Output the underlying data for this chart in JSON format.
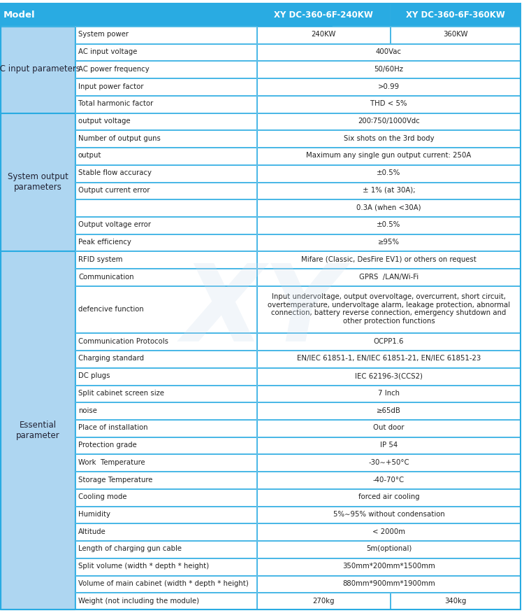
{
  "header": {
    "col0": "Model",
    "col1": "",
    "col2": "XY DC-360-6F-240KW",
    "col3": "XY DC-360-6F-360KW"
  },
  "header_bg": "#29ABE2",
  "header_text_color": "#FFFFFF",
  "section_bg": "#AED6F1",
  "row_bg_white": "#FFFFFF",
  "row_bg_light": "#EAF4FB",
  "border_color": "#29ABE2",
  "text_color": "#222222",
  "section_text_color": "#333333",
  "rows": [
    {
      "section": "AC input parameters",
      "param": "System power",
      "col2": "240KW",
      "col3": "360KW",
      "merged": false,
      "section_span": 5
    },
    {
      "section": "",
      "param": "AC input voltage",
      "col2": "400Vac",
      "col3": "",
      "merged": true
    },
    {
      "section": "",
      "param": "AC power frequency",
      "col2": "50/60Hz",
      "col3": "",
      "merged": true
    },
    {
      "section": "",
      "param": "Input power factor",
      "col2": ">0.99",
      "col3": "",
      "merged": true
    },
    {
      "section": "",
      "param": "Total harmonic factor",
      "col2": "THD < 5%",
      "col3": "",
      "merged": true
    },
    {
      "section": "System output\nparameters",
      "param": "output voltage",
      "col2": "200∶750/1000Vdc",
      "col3": "",
      "merged": true,
      "section_span": 8
    },
    {
      "section": "",
      "param": "Number of output guns",
      "col2": "Six shots on the 3rd body",
      "col3": "",
      "merged": true
    },
    {
      "section": "",
      "param": "output",
      "col2": "Maximum any single gun output current: 250A",
      "col3": "",
      "merged": true
    },
    {
      "section": "",
      "param": "Stable flow accuracy",
      "col2": "±0.5%",
      "col3": "",
      "merged": true
    },
    {
      "section": "",
      "param": "Output current error",
      "col2": "± 1% (at 30A);",
      "col3": "",
      "merged": true
    },
    {
      "section": "",
      "param": "",
      "col2": "0.3A (when <30A)",
      "col3": "",
      "merged": true
    },
    {
      "section": "",
      "param": "Output voltage error",
      "col2": "±0.5%",
      "col3": "",
      "merged": true
    },
    {
      "section": "",
      "param": "Peak efficiency",
      "col2": "≥95%",
      "col3": "",
      "merged": true
    },
    {
      "section": "Essential\nparameter",
      "param": "RFID system",
      "col2": "Mifare (Classic, DesFire EV1) or others on request",
      "col3": "",
      "merged": true,
      "section_span": 19
    },
    {
      "section": "",
      "param": "Communication",
      "col2": "GPRS  /LAN/Wi-Fi",
      "col3": "",
      "merged": true
    },
    {
      "section": "",
      "param": "defencive function",
      "col2": "Input undervoltage, output overvoltage, overcurrent, short circuit,\novertemperature, undervoltage alarm, leakage protection, abnormal\nconnection, battery reverse connection, emergency shutdown and\nother protection functions",
      "col3": "",
      "merged": true,
      "tall": true
    },
    {
      "section": "",
      "param": "Communication Protocols",
      "col2": "OCPP1.6",
      "col3": "",
      "merged": true
    },
    {
      "section": "",
      "param": "Charging standard",
      "col2": "EN/IEC 61851-1, EN/IEC 61851-21, EN/IEC 61851-23",
      "col3": "",
      "merged": true
    },
    {
      "section": "",
      "param": "DC plugs",
      "col2": "IEC 62196-3(CCS2)",
      "col3": "",
      "merged": true
    },
    {
      "section": "",
      "param": "Split cabinet screen size",
      "col2": "7 Inch",
      "col3": "",
      "merged": true
    },
    {
      "section": "",
      "param": "noise",
      "col2": "≥65dB",
      "col3": "",
      "merged": true
    },
    {
      "section": "",
      "param": "Place of installation",
      "col2": "Out door",
      "col3": "",
      "merged": true
    },
    {
      "section": "",
      "param": "Protection grade",
      "col2": "IP 54",
      "col3": "",
      "merged": true
    },
    {
      "section": "",
      "param": "Work  Temperature",
      "col2": "-30∼+50°C",
      "col3": "",
      "merged": true
    },
    {
      "section": "",
      "param": "Storage Temperature",
      "col2": "-40-70°C",
      "col3": "",
      "merged": true
    },
    {
      "section": "",
      "param": "Cooling mode",
      "col2": "forced air cooling",
      "col3": "",
      "merged": true
    },
    {
      "section": "",
      "param": "Humidity",
      "col2": "5%∼95% without condensation",
      "col3": "",
      "merged": true
    },
    {
      "section": "",
      "param": "Altitude",
      "col2": "< 2000m",
      "col3": "",
      "merged": true
    },
    {
      "section": "",
      "param": "Length of charging gun cable",
      "col2": "5m(optional)",
      "col3": "",
      "merged": true
    },
    {
      "section": "",
      "param": "Split volume (width * depth * height)",
      "col2": "350mm*200mm*1500mm",
      "col3": "",
      "merged": true
    },
    {
      "section": "",
      "param": "Volume of main cabinet (width * depth * height)",
      "col2": "880mm*900mm*1900mm",
      "col3": "",
      "merged": true
    },
    {
      "section": "",
      "param": "Weight (not including the module)",
      "col2": "270kg",
      "col3": "340kg",
      "merged": false
    }
  ]
}
